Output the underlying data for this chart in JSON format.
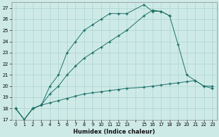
{
  "xlabel": "Humidex (Indice chaleur)",
  "bg_color": "#ceeae7",
  "line_color": "#1a6e64",
  "grid_color": "#aad4d0",
  "xlim": [
    -0.5,
    23.5
  ],
  "ylim": [
    17,
    27.5
  ],
  "yticks": [
    17,
    18,
    19,
    20,
    21,
    22,
    23,
    24,
    25,
    26,
    27
  ],
  "line1_x": [
    0,
    1,
    2,
    3,
    4,
    5,
    6,
    7,
    8,
    9,
    10,
    11,
    12,
    13,
    15,
    16,
    17,
    18
  ],
  "line1_y": [
    18,
    17,
    18,
    18.3,
    20.0,
    21.0,
    23.0,
    24.0,
    25.0,
    25.5,
    26.0,
    26.5,
    26.5,
    26.5,
    27.3,
    26.7,
    26.7,
    26.3
  ],
  "line2_x": [
    0,
    1,
    2,
    3,
    4,
    5,
    6,
    7,
    8,
    9,
    10,
    11,
    12,
    13,
    15,
    16,
    17,
    18,
    19,
    20,
    21,
    22,
    23
  ],
  "line2_y": [
    18,
    17,
    18,
    18.3,
    19.3,
    20.0,
    21.0,
    21.8,
    22.5,
    23.0,
    23.5,
    24.0,
    24.5,
    25.0,
    26.3,
    26.8,
    26.7,
    26.3,
    23.7,
    21.0,
    20.5,
    20.0,
    20.0
  ],
  "line3_x": [
    0,
    1,
    2,
    3,
    4,
    5,
    6,
    7,
    8,
    9,
    10,
    11,
    12,
    13,
    15,
    16,
    17,
    18,
    19,
    20,
    21,
    22,
    23
  ],
  "line3_y": [
    18,
    17,
    18,
    18.3,
    18.5,
    18.7,
    18.9,
    19.1,
    19.3,
    19.4,
    19.5,
    19.6,
    19.7,
    19.8,
    19.9,
    20.0,
    20.1,
    20.2,
    20.3,
    20.4,
    20.5,
    20.0,
    19.8
  ]
}
